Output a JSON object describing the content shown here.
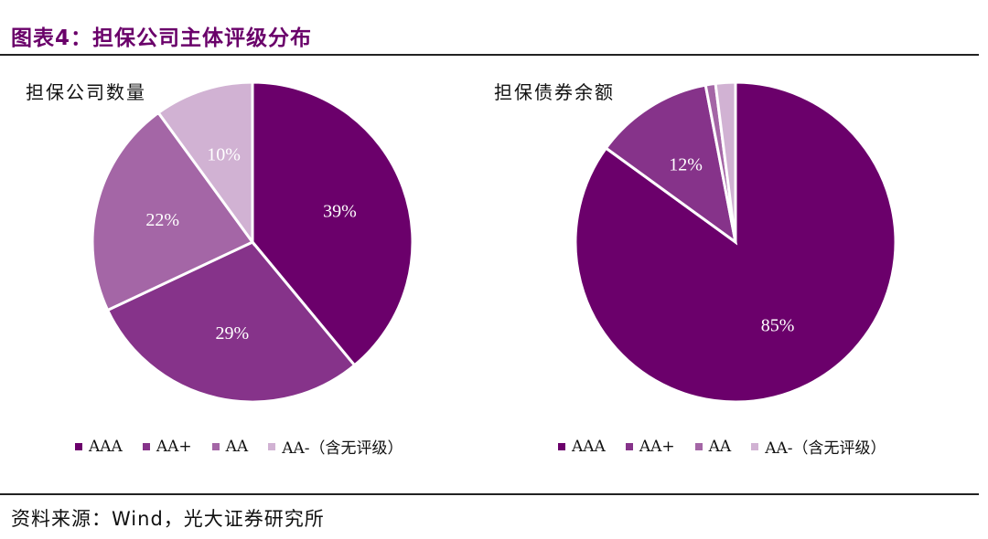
{
  "figure": {
    "title": "图表4：担保公司主体评级分布",
    "source": "资料来源：Wind，光大证券研究所"
  },
  "chart_data": [
    {
      "type": "pie",
      "title": "担保公司数量",
      "categories": [
        "AAA",
        "AA+",
        "AA",
        "AA-（含无评级）"
      ],
      "values": [
        39,
        29,
        22,
        10
      ],
      "labels": [
        "39%",
        "29%",
        "22%",
        "10%"
      ],
      "colors": [
        "#6b006b",
        "#86338a",
        "#a466a6",
        "#d1b2d3"
      ],
      "legend": "bottom"
    },
    {
      "type": "pie",
      "title": "担保债券余额",
      "categories": [
        "AAA",
        "AA+",
        "AA",
        "AA-（含无评级）"
      ],
      "values": [
        85,
        12,
        1,
        2
      ],
      "labels": [
        "85%",
        "12%",
        "",
        ""
      ],
      "colors": [
        "#6b006b",
        "#86338a",
        "#a466a6",
        "#d1b2d3"
      ],
      "legend": "bottom"
    }
  ]
}
